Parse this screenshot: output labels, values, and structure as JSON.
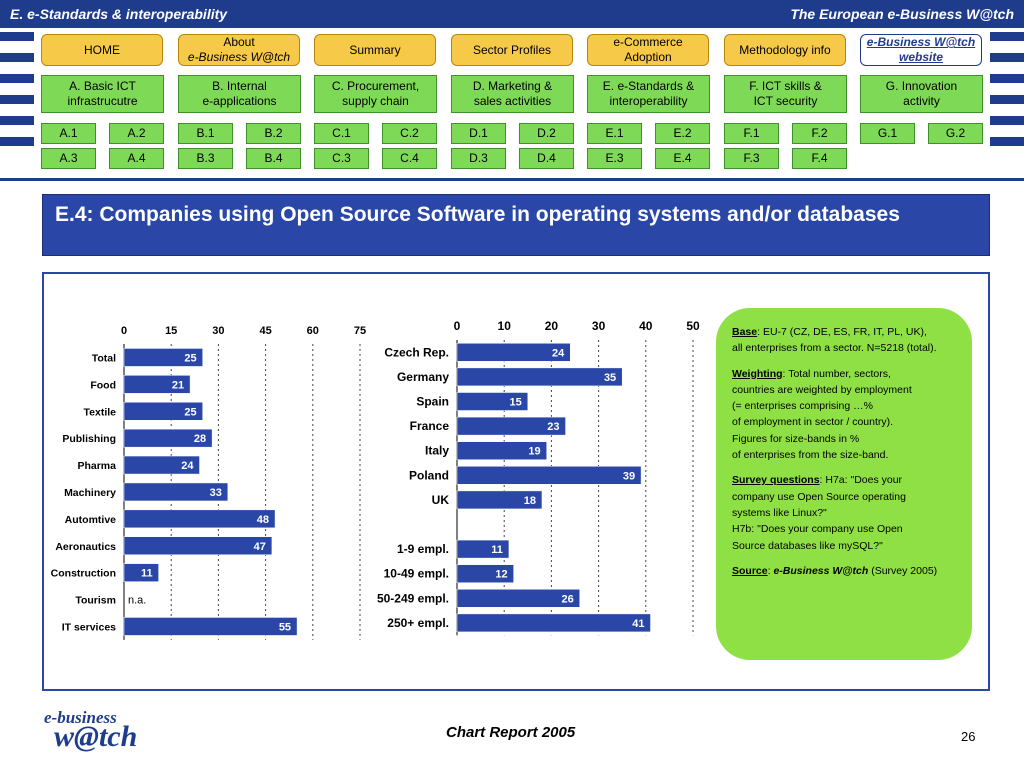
{
  "header": {
    "left": "E. e-Standards & interoperability",
    "right": "The European e-Business W@tch"
  },
  "nav": {
    "home": "HOME",
    "about": [
      "About",
      "e-Business W@tch"
    ],
    "summary": "Summary",
    "sector": "Sector Profiles",
    "ecommerce": [
      "e-Commerce",
      "Adoption"
    ],
    "methodology": "Methodology info",
    "website": [
      "e-Business W@tch",
      "website"
    ]
  },
  "categories": [
    {
      "label": [
        "A. Basic ICT",
        "infrastrucutre"
      ],
      "subs": [
        "A.1",
        "A.2",
        "A.3",
        "A.4"
      ]
    },
    {
      "label": [
        "B. Internal",
        "e-applications"
      ],
      "subs": [
        "B.1",
        "B.2",
        "B.3",
        "B.4"
      ]
    },
    {
      "label": [
        "C. Procurement,",
        "supply chain"
      ],
      "subs": [
        "C.1",
        "C.2",
        "C.3",
        "C.4"
      ]
    },
    {
      "label": [
        "D. Marketing &",
        "sales activities"
      ],
      "subs": [
        "D.1",
        "D.2",
        "D.3",
        "D.4"
      ]
    },
    {
      "label": [
        "E. e-Standards &",
        "interoperability"
      ],
      "subs": [
        "E.1",
        "E.2",
        "E.3",
        "E.4"
      ]
    },
    {
      "label": [
        "F. ICT skills &",
        "ICT security"
      ],
      "subs": [
        "F.1",
        "F.2",
        "F.3",
        "F.4"
      ]
    },
    {
      "label": [
        "G. Innovation",
        "activity"
      ],
      "subs": [
        "G.1",
        "G.2"
      ]
    }
  ],
  "title": "E.4: Companies using Open Source Software in operating systems and/or databases",
  "chart_data": [
    {
      "type": "bar",
      "orientation": "horizontal",
      "xlim": [
        0,
        75
      ],
      "ticks": [
        0,
        15,
        30,
        45,
        60,
        75
      ],
      "grid": true,
      "categories": [
        "Total",
        "Food",
        "Textile",
        "Publishing",
        "Pharma",
        "Machinery",
        "Automtive",
        "Aeronautics",
        "Construction",
        "Tourism",
        "IT services"
      ],
      "values": [
        25,
        21,
        25,
        28,
        24,
        33,
        48,
        47,
        11,
        null,
        55
      ],
      "value_labels": [
        "25",
        "21",
        "25",
        "28",
        "24",
        "33",
        "48",
        "47",
        "11",
        "n.a.",
        "55"
      ],
      "bar_color": "#2a47a8"
    },
    {
      "type": "bar",
      "orientation": "horizontal",
      "xlim": [
        0,
        50
      ],
      "ticks": [
        0,
        10,
        20,
        30,
        40,
        50
      ],
      "grid": true,
      "categories": [
        "Czech Rep.",
        "Germany",
        "Spain",
        "France",
        "Italy",
        "Poland",
        "UK",
        "",
        "1-9 empl.",
        "10-49 empl.",
        "50-249 empl.",
        "250+ empl."
      ],
      "values": [
        24,
        35,
        15,
        23,
        19,
        39,
        18,
        null,
        11,
        12,
        26,
        41
      ],
      "value_labels": [
        "24",
        "35",
        "15",
        "23",
        "19",
        "39",
        "18",
        "",
        "11",
        "12",
        "26",
        "41"
      ],
      "bar_color": "#2a47a8"
    }
  ],
  "notes": {
    "base_label": "Base",
    "base_text": ": EU-7 (CZ, DE, ES, FR, IT, PL, UK),",
    "base_text2": "all enterprises from a sector. N=5218 (total).",
    "weighting_label": "Weighting",
    "weighting_lines": [
      ": Total number, sectors,",
      "countries are weighted by employment",
      "(= enterprises comprising …%",
      "of employment in sector / country).",
      "Figures for size-bands in %",
      "of enterprises from the size-band."
    ],
    "survey_label": "Survey questions",
    "survey_lines": [
      ": H7a: \"Does your",
      "company use Open Source operating",
      "systems like Linux?\"",
      "H7b: \"Does your company use Open",
      "Source databases like mySQL?\""
    ],
    "source_label": "Source",
    "source_name": "e-Business W@tch",
    "source_rest": " (Survey 2005)"
  },
  "footer": {
    "logo_top": "e-business",
    "logo_bottom": "w@tch",
    "title": "Chart Report 2005",
    "page": "26"
  }
}
